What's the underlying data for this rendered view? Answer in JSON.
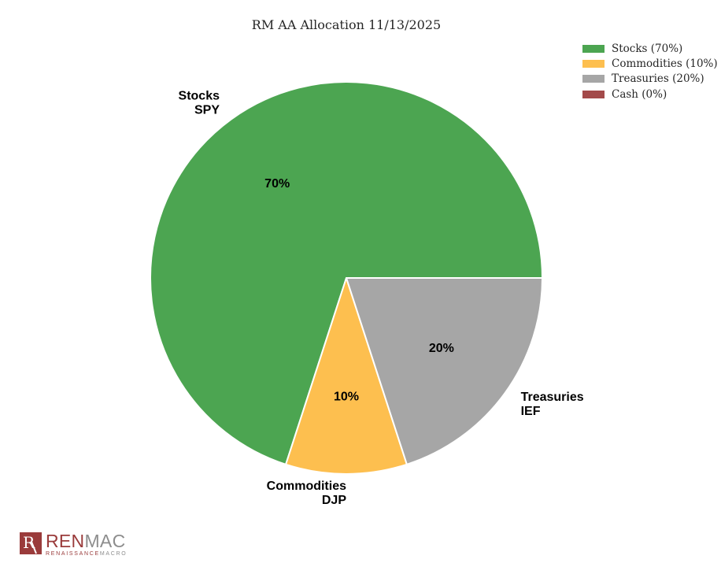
{
  "title": "RM AA Allocation 11/13/2025",
  "chart_data": {
    "type": "pie",
    "title": "RM AA Allocation 11/13/2025",
    "start_angle_deg": 0,
    "direction": "counterclockwise",
    "legend_position": "upper-right",
    "total": 100,
    "slices": [
      {
        "label": "Stocks",
        "ticker": "SPY",
        "value": 70,
        "pct_text": "70%",
        "color": "#4CA551",
        "legend_label": "Stocks (70%)"
      },
      {
        "label": "Commodities",
        "ticker": "DJP",
        "value": 10,
        "pct_text": "10%",
        "color": "#FDBF4F",
        "legend_label": "Commodities (10%)"
      },
      {
        "label": "Treasuries",
        "ticker": "IEF",
        "value": 20,
        "pct_text": "20%",
        "color": "#A6A6A6",
        "legend_label": "Treasuries (20%)"
      },
      {
        "label": "Cash",
        "ticker": "",
        "value": 0,
        "pct_text": "0%",
        "color": "#A34A4A",
        "legend_label": "Cash (0%)"
      }
    ]
  },
  "logo": {
    "mark_letter": "R",
    "name_part1": "REN",
    "name_part2": "MAC",
    "sub_part1": "RENAISSANCE",
    "sub_part2": "MACRO",
    "brand_maroon": "#9A3B3B",
    "brand_gray": "#8D8D8D"
  }
}
